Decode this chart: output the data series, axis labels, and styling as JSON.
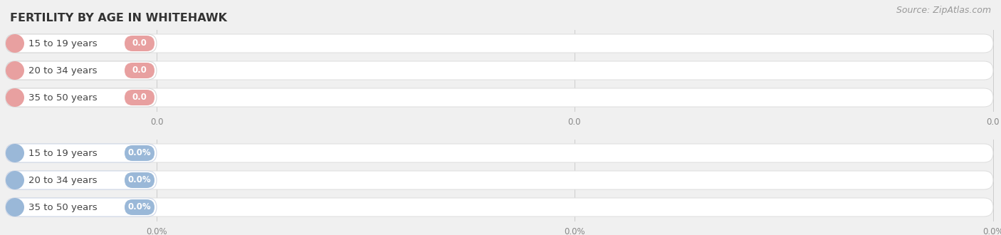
{
  "title": "FERTILITY BY AGE IN WHITEHAWK",
  "source": "Source: ZipAtlas.com",
  "background_color": "#f0f0f0",
  "sections": [
    {
      "labels": [
        "15 to 19 years",
        "20 to 34 years",
        "35 to 50 years"
      ],
      "values": [
        0.0,
        0.0,
        0.0
      ],
      "value_labels": [
        "0.0",
        "0.0",
        "0.0"
      ],
      "bar_color": "#e8a0a0",
      "label_color": "#444444",
      "axis_tick_labels": [
        "0.0",
        "0.0",
        "0.0"
      ],
      "pill_outline_color": "#d8d8d8"
    },
    {
      "labels": [
        "15 to 19 years",
        "20 to 34 years",
        "35 to 50 years"
      ],
      "values": [
        0.0,
        0.0,
        0.0
      ],
      "value_labels": [
        "0.0%",
        "0.0%",
        "0.0%"
      ],
      "bar_color": "#9ab8d8",
      "label_color": "#444444",
      "axis_tick_labels": [
        "0.0%",
        "0.0%",
        "0.0%"
      ],
      "pill_outline_color": "#d0d8e8"
    }
  ],
  "fig_width": 14.06,
  "fig_height": 3.3,
  "dpi": 100,
  "title_fontsize": 11.5,
  "title_color": "#333333",
  "source_fontsize": 9,
  "source_color": "#999999",
  "label_fontsize": 9.5,
  "value_fontsize": 8.5,
  "axis_tick_fontsize": 8.5,
  "axis_tick_color": "#888888"
}
